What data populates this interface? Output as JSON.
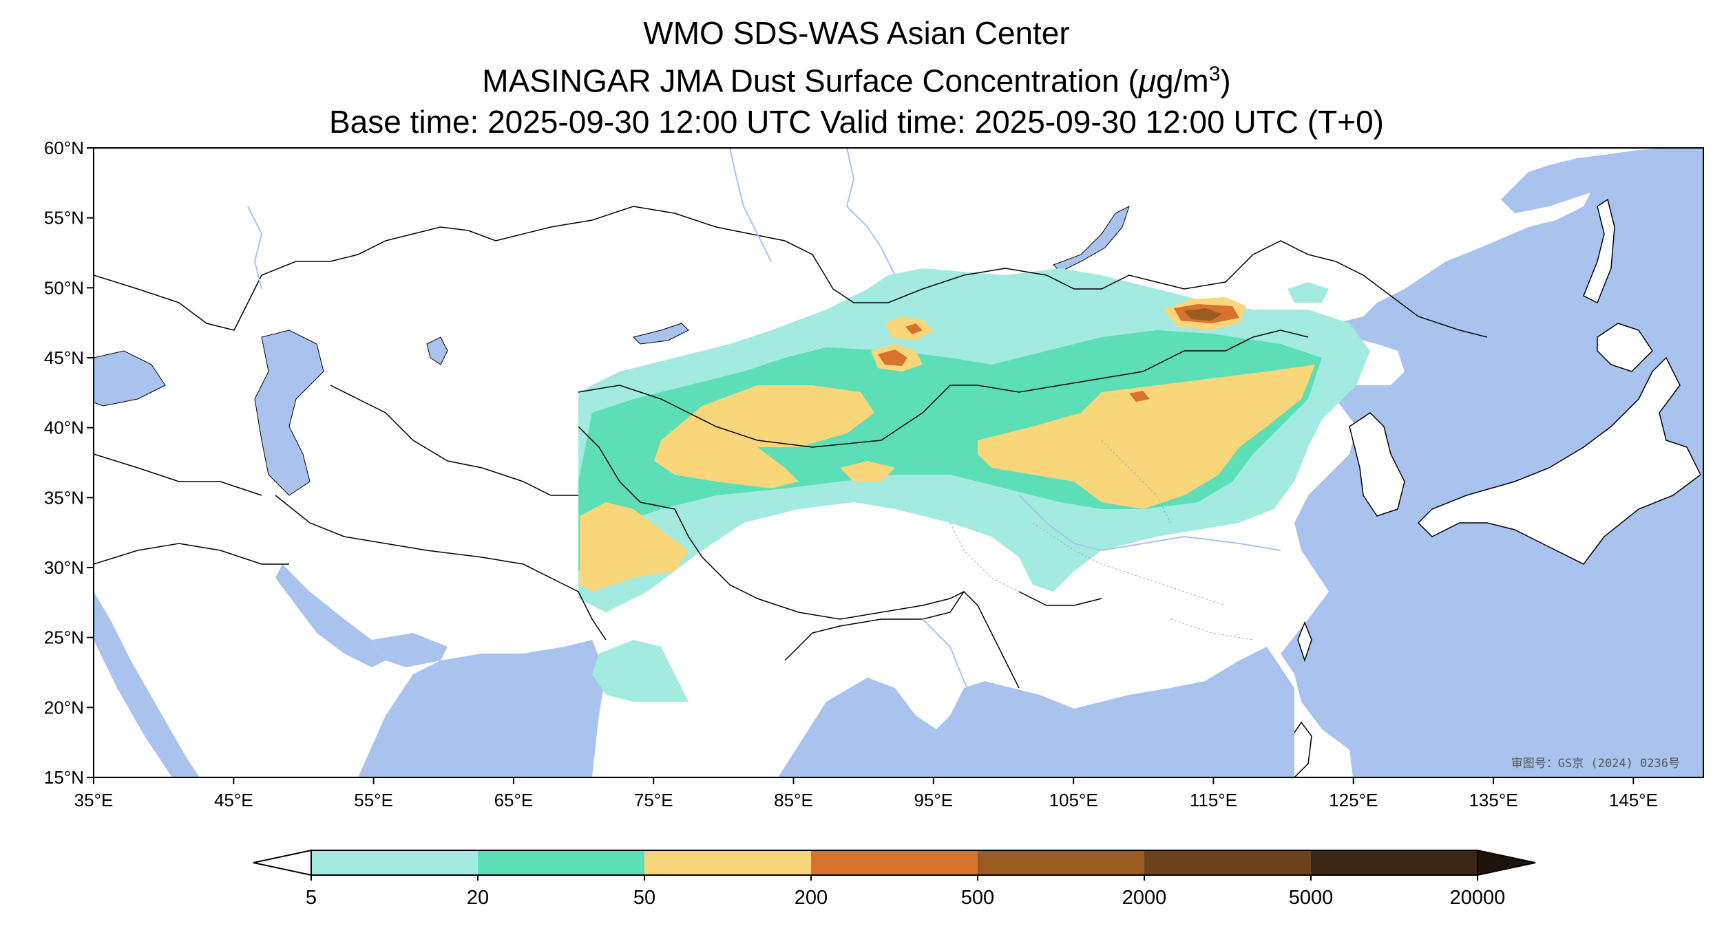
{
  "title": {
    "line1": "WMO SDS-WAS Asian Center",
    "line2_prefix": "MASINGAR JMA Dust Surface Concentration (",
    "line2_mu": "μ",
    "line2_unit": "g/m",
    "line2_sup": "3",
    "line2_suffix": ")",
    "line3": "Base time: 2025-09-30 12:00 UTC Valid time: 2025-09-30 12:00 UTC (T+0)"
  },
  "map": {
    "lon_range": [
      35,
      150
    ],
    "lat_range": [
      15,
      60
    ],
    "lat_ticks": [
      {
        "value": 60,
        "label": "60°N"
      },
      {
        "value": 55,
        "label": "55°N"
      },
      {
        "value": 50,
        "label": "50°N"
      },
      {
        "value": 45,
        "label": "45°N"
      },
      {
        "value": 40,
        "label": "40°N"
      },
      {
        "value": 35,
        "label": "35°N"
      },
      {
        "value": 30,
        "label": "30°N"
      },
      {
        "value": 25,
        "label": "25°N"
      },
      {
        "value": 20,
        "label": "20°N"
      },
      {
        "value": 15,
        "label": "15°N"
      }
    ],
    "lon_ticks": [
      {
        "value": 35,
        "label": "35°E"
      },
      {
        "value": 45,
        "label": "45°E"
      },
      {
        "value": 55,
        "label": "55°E"
      },
      {
        "value": 65,
        "label": "65°E"
      },
      {
        "value": 75,
        "label": "75°E"
      },
      {
        "value": 85,
        "label": "85°E"
      },
      {
        "value": 95,
        "label": "95°E"
      },
      {
        "value": 105,
        "label": "105°E"
      },
      {
        "value": 115,
        "label": "115°E"
      },
      {
        "value": 125,
        "label": "125°E"
      },
      {
        "value": 135,
        "label": "135°E"
      },
      {
        "value": 145,
        "label": "145°E"
      }
    ],
    "watermark": "审图号：GS京 (2024) 0236号",
    "ocean_color": "#a9c3ee",
    "land_color": "#ffffff"
  },
  "colorbar": {
    "levels": [
      {
        "label": "5",
        "color": "#a3ebe0"
      },
      {
        "label": "20",
        "color": "#5cdfb6"
      },
      {
        "label": "50",
        "color": "#fad67a"
      },
      {
        "label": "200",
        "color": "#d8732e"
      },
      {
        "label": "500",
        "color": "#9a5b22"
      },
      {
        "label": "2000",
        "color": "#6d421b"
      },
      {
        "label": "5000",
        "color": "#3b2514"
      },
      {
        "label": "20000",
        "color": ""
      }
    ],
    "under_color": "#ffffff",
    "over_color": "#1e130a"
  }
}
